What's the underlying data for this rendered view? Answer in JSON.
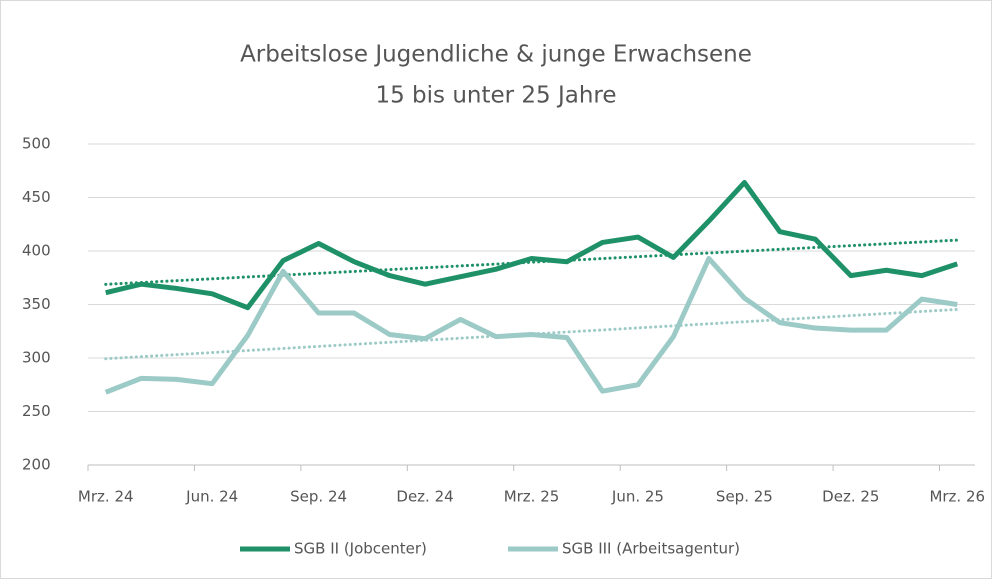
{
  "chart_data": {
    "type": "line",
    "title": "Arbeitslose Jugendliche & junge Erwachsene",
    "subtitle": "15 bis unter 25 Jahre",
    "categories": [
      "Mrz. 24",
      null,
      null,
      "Jun. 24",
      null,
      null,
      "Sep. 24",
      null,
      null,
      "Dez. 24",
      null,
      null,
      "Mrz. 25",
      null,
      null,
      "Jun. 25",
      null,
      null,
      "Sep. 25",
      null,
      null,
      "Dez. 25",
      null,
      null,
      "Mrz. 26"
    ],
    "series": [
      {
        "name": "SGB II (Jobcenter)",
        "color": "#1e9168",
        "values": [
          361,
          369,
          365,
          360,
          347,
          391,
          407,
          390,
          377,
          369,
          376,
          383,
          393,
          390,
          408,
          413,
          394,
          428,
          464,
          418,
          411,
          377,
          382,
          377,
          388
        ]
      },
      {
        "name": "SGB III (Arbeitsagentur)",
        "color": "#9ccac6",
        "values": [
          268,
          281,
          280,
          276,
          321,
          381,
          342,
          342,
          322,
          318,
          336,
          320,
          322,
          319,
          269,
          275,
          320,
          393,
          356,
          333,
          328,
          326,
          326,
          355,
          350
        ]
      }
    ],
    "ylim": [
      200,
      500
    ],
    "yticks": [
      200,
      250,
      300,
      350,
      400,
      450,
      500
    ],
    "grid": true,
    "trendline": true,
    "legend": "bottom"
  }
}
